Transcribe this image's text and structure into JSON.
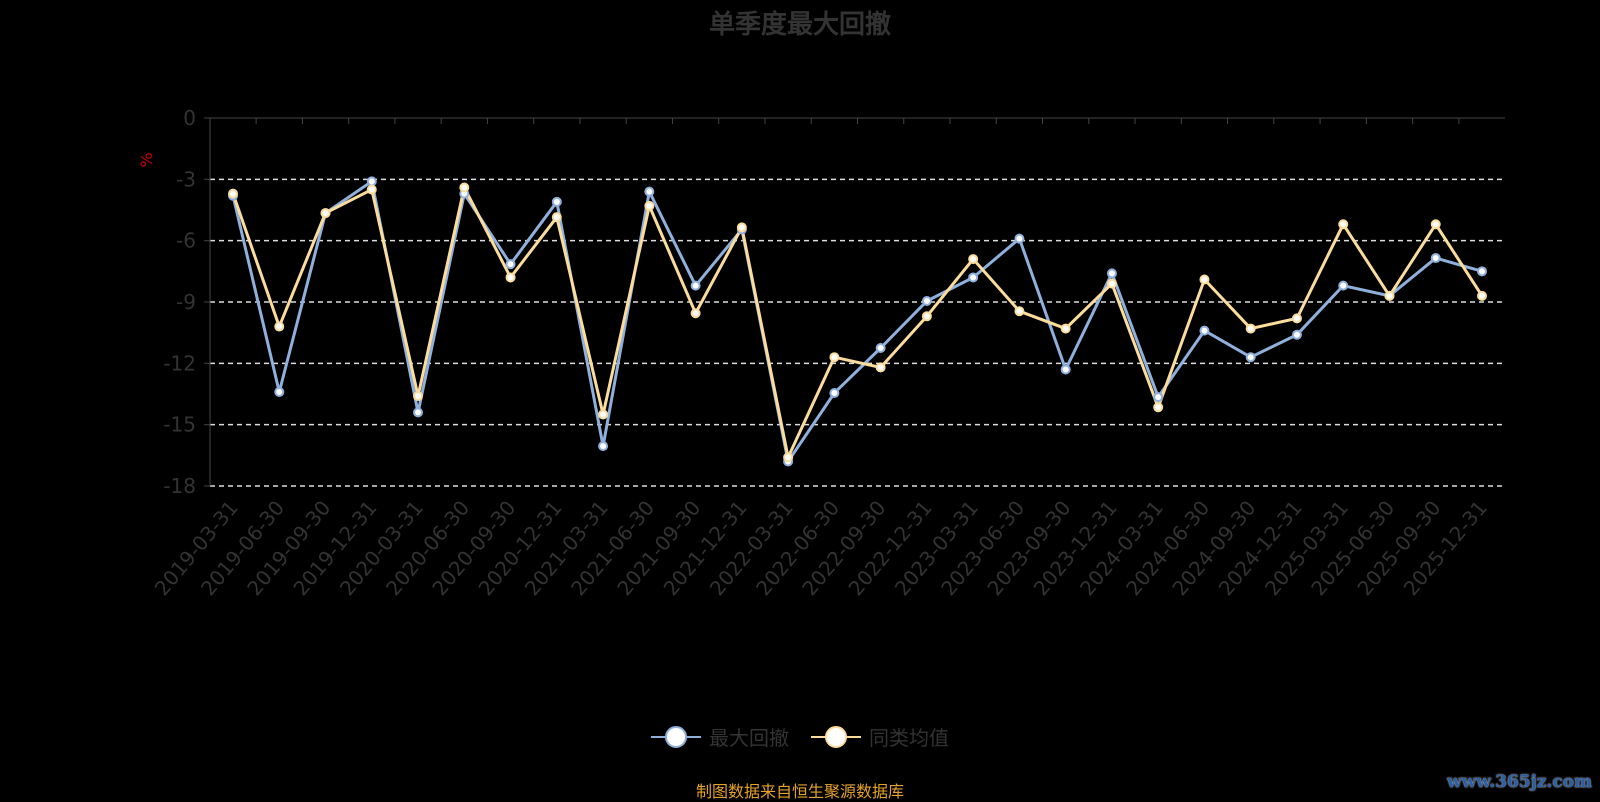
{
  "chart_data": {
    "type": "line",
    "title": "单季度最大回撤",
    "ylabel": "%",
    "ylim": [
      -18,
      0
    ],
    "yticks": [
      0,
      -3,
      -6,
      -9,
      -12,
      -15,
      -18
    ],
    "grid": true,
    "legend_position": "bottom",
    "categories": [
      "2019-03-31",
      "2019-06-30",
      "2019-09-30",
      "2019-12-31",
      "2020-03-31",
      "2020-06-30",
      "2020-09-30",
      "2020-12-31",
      "2021-03-31",
      "2021-06-30",
      "2021-09-30",
      "2021-12-31",
      "2022-03-31",
      "2022-06-30",
      "2022-09-30",
      "2022-12-31",
      "2023-03-31",
      "2023-06-30",
      "2023-09-30",
      "2023-12-31",
      "2024-03-31",
      "2024-06-30",
      "2024-09-30",
      "2024-12-31",
      "2025-03-31",
      "2025-06-30",
      "2025-09-30",
      "2025-12-31"
    ],
    "series": [
      {
        "name": "最大回撤",
        "color": "#8fb0dc",
        "values": [
          -3.8,
          -13.4,
          -4.65,
          -3.1,
          -14.4,
          -3.7,
          -7.15,
          -4.1,
          -16.05,
          -3.6,
          -8.2,
          -5.45,
          -16.8,
          -13.45,
          -11.25,
          -8.95,
          -7.8,
          -5.9,
          -12.3,
          -7.6,
          -13.65,
          -10.4,
          -11.7,
          -10.6,
          -8.2,
          -8.7,
          -6.85,
          -7.5
        ]
      },
      {
        "name": "同类均值",
        "color": "#fbdc9c",
        "values": [
          -3.7,
          -10.2,
          -4.65,
          -3.5,
          -13.6,
          -3.4,
          -7.8,
          -4.85,
          -14.5,
          -4.3,
          -9.55,
          -5.35,
          -16.6,
          -11.7,
          -12.2,
          -9.7,
          -6.9,
          -9.45,
          -10.3,
          -8.1,
          -14.15,
          -7.9,
          -10.3,
          -9.8,
          -5.2,
          -8.7,
          -5.2,
          -8.7
        ]
      }
    ]
  },
  "source": "制图数据来自恒生聚源数据库",
  "watermark": "www.365jz.com",
  "ylabel_color": "#cc0000"
}
